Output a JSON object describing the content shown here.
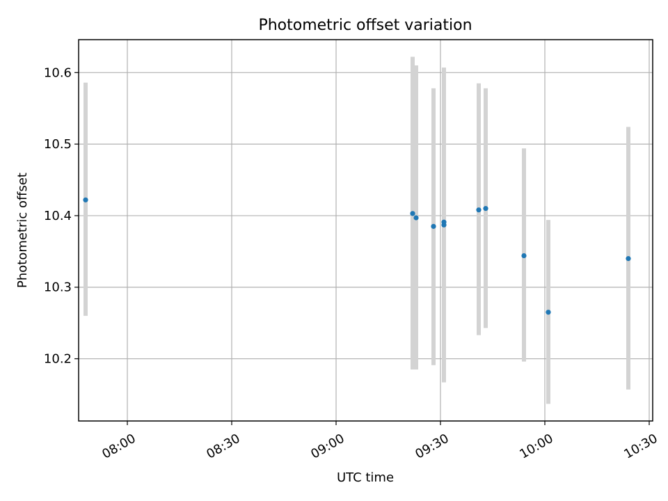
{
  "chart_data": {
    "type": "scatter",
    "title": "Photometric offset variation",
    "xlabel": "UTC time",
    "ylabel": "Photometric offset",
    "grid": true,
    "legend": "none",
    "xlim": [
      "07:46",
      "10:31"
    ],
    "ylim": [
      10.113,
      10.646
    ],
    "x_ticks": [
      "08:00",
      "08:30",
      "09:00",
      "09:30",
      "10:00",
      "10:30"
    ],
    "y_ticks": [
      "10.2",
      "10.3",
      "10.4",
      "10.5",
      "10.6"
    ],
    "colors": {
      "points": "#1f77b4",
      "error_bars": "#d3d3d3"
    },
    "series": [
      {
        "x": [
          "07:48",
          "09:22",
          "09:23",
          "09:28",
          "09:31",
          "09:31",
          "09:41",
          "09:43",
          "09:54",
          "10:01",
          "10:24"
        ],
        "y": [
          10.422,
          10.403,
          10.397,
          10.385,
          10.387,
          10.391,
          10.408,
          10.41,
          10.344,
          10.265,
          10.34
        ],
        "y_err_low": [
          10.26,
          10.185,
          10.185,
          10.191,
          10.167,
          10.183,
          10.233,
          10.243,
          10.196,
          10.137,
          10.157
        ],
        "y_err_high": [
          10.586,
          10.622,
          10.61,
          10.578,
          10.607,
          10.6,
          10.585,
          10.578,
          10.494,
          10.394,
          10.524
        ]
      }
    ]
  }
}
